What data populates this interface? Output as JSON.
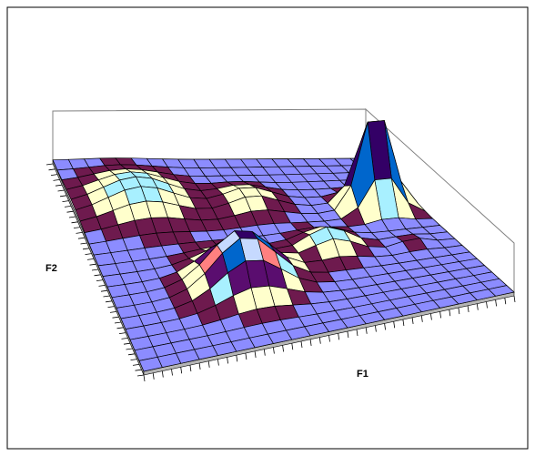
{
  "chart_data": {
    "type": "surface-3d",
    "xlabel": "F1",
    "ylabel": "F2",
    "grid": true,
    "legend": "none",
    "dimensions": {
      "rows": 20,
      "cols": 20
    },
    "value_range": [
      0,
      1
    ],
    "colors": {
      "floor": "#8c8cff",
      "wire": "#000000",
      "walls": "#d8d8d8",
      "base": "#6e1a4e",
      "bands": [
        "#6e1a4e",
        "#ffffcc",
        "#a8f0ff",
        "#5a0d6f",
        "#ff8080",
        "#0066cc",
        "#c6d9ff",
        "#330066"
      ],
      "frame": "#000000"
    },
    "peaks": [
      {
        "row": 4.5,
        "col": 4.0,
        "height": 0.22,
        "spread": 2.0
      },
      {
        "row": 5.5,
        "col": 10.5,
        "height": 0.15,
        "spread": 1.4
      },
      {
        "row": 6.8,
        "col": 17.5,
        "height": 1.0,
        "spread": 0.9
      },
      {
        "row": 13.6,
        "col": 7.3,
        "height": 0.5,
        "spread": 1.7
      },
      {
        "row": 11.2,
        "col": 13.0,
        "height": 0.2,
        "spread": 1.2
      },
      {
        "row": 11.9,
        "col": 17.6,
        "height": 0.06,
        "spread": 0.7
      }
    ]
  }
}
